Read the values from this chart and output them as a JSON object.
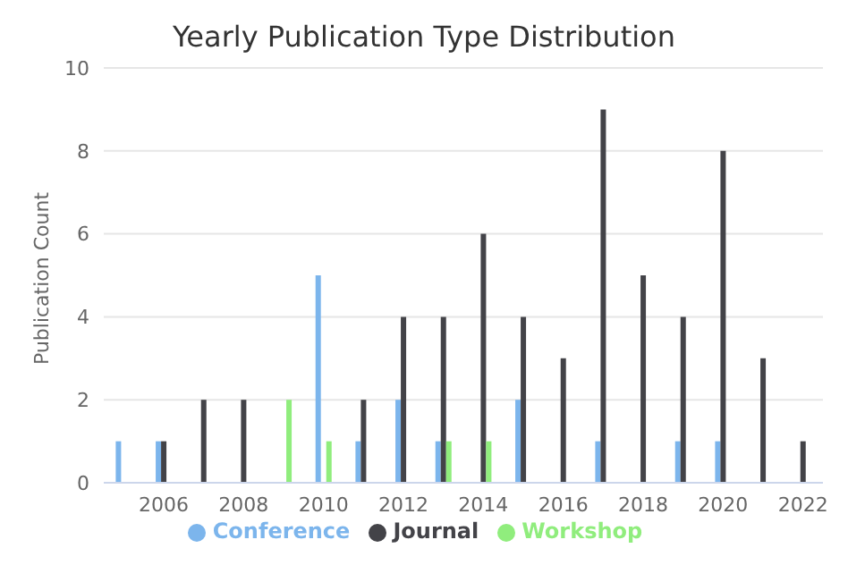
{
  "chart_data": {
    "type": "bar",
    "title": "Yearly Publication Type Distribution",
    "ylabel": "Publication Count",
    "categories": [
      null,
      "2006",
      null,
      "2008",
      null,
      "2010",
      null,
      "2012",
      null,
      "2014",
      null,
      "2016",
      null,
      "2018",
      null,
      "2020",
      null,
      "2022"
    ],
    "series": [
      {
        "name": "Conference",
        "color": "#7cb5ec",
        "values": [
          1,
          1,
          null,
          null,
          null,
          5,
          1,
          2,
          1,
          null,
          2,
          null,
          1,
          null,
          1,
          1,
          null,
          null
        ]
      },
      {
        "name": "Journal",
        "color": "#434348",
        "values": [
          null,
          1,
          2,
          2,
          null,
          null,
          2,
          4,
          4,
          6,
          4,
          3,
          9,
          5,
          4,
          8,
          3,
          1
        ]
      },
      {
        "name": "Workshop",
        "color": "#90ed7d",
        "values": [
          null,
          null,
          null,
          null,
          2,
          1,
          null,
          null,
          1,
          1,
          null,
          null,
          null,
          null,
          null,
          null,
          null,
          null
        ]
      }
    ],
    "ylim": [
      0,
      10
    ],
    "yticks": [
      0,
      2,
      4,
      6,
      8,
      10
    ],
    "grid": "y",
    "legend": "bottom"
  }
}
